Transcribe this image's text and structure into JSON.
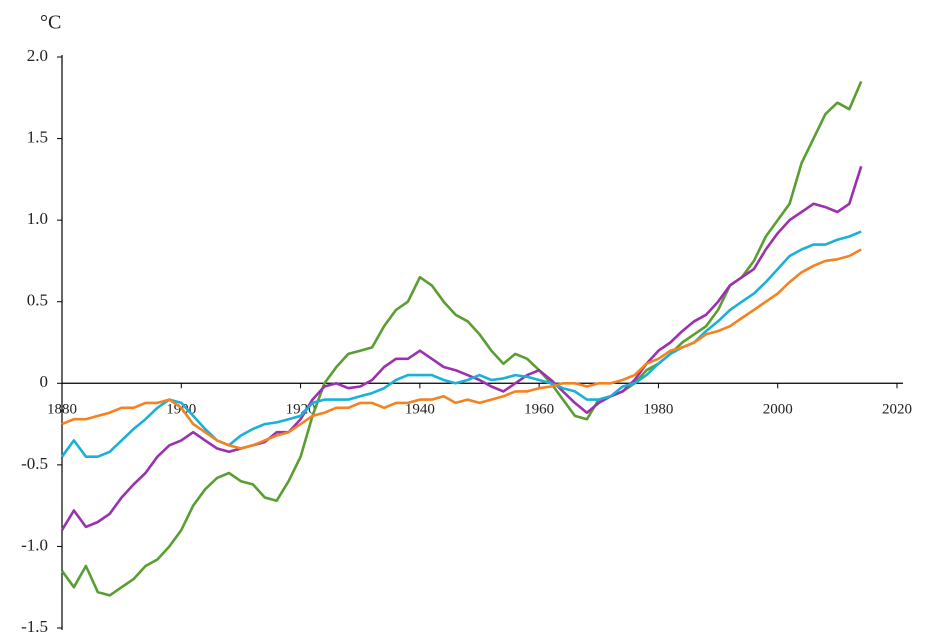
{
  "chart_data": {
    "type": "line",
    "ylabel": "°C",
    "x": [
      1880,
      1882,
      1884,
      1886,
      1888,
      1890,
      1892,
      1894,
      1896,
      1898,
      1900,
      1902,
      1904,
      1906,
      1908,
      1910,
      1912,
      1914,
      1916,
      1918,
      1920,
      1922,
      1924,
      1926,
      1928,
      1930,
      1932,
      1934,
      1936,
      1938,
      1940,
      1942,
      1944,
      1946,
      1948,
      1950,
      1952,
      1954,
      1956,
      1958,
      1960,
      1962,
      1964,
      1966,
      1968,
      1970,
      1972,
      1974,
      1976,
      1978,
      1980,
      1982,
      1984,
      1986,
      1988,
      1990,
      1992,
      1994,
      1996,
      1998,
      2000,
      2002,
      2004,
      2006,
      2008,
      2010,
      2012,
      2014
    ],
    "xlim": [
      1880,
      2020
    ],
    "xticks": [
      1880,
      1900,
      1920,
      1940,
      1960,
      1980,
      2000,
      2020
    ],
    "ylim": [
      -1.5,
      2.0
    ],
    "yticks": [
      {
        "value": 2.0,
        "label": "2.0"
      },
      1.5,
      {
        "value": 1.0,
        "label": "1.0"
      },
      0.5,
      0,
      -0.5,
      {
        "value": -1.0,
        "label": "-1.0"
      },
      -1.5
    ],
    "series": [
      {
        "color": "#5a9e32",
        "values": [
          -1.15,
          -1.25,
          -1.12,
          -1.28,
          -1.3,
          -1.25,
          -1.2,
          -1.12,
          -1.08,
          -1.0,
          -0.9,
          -0.75,
          -0.65,
          -0.58,
          -0.55,
          -0.6,
          -0.62,
          -0.7,
          -0.72,
          -0.6,
          -0.45,
          -0.2,
          0.0,
          0.1,
          0.18,
          0.2,
          0.22,
          0.35,
          0.45,
          0.5,
          0.65,
          0.6,
          0.5,
          0.42,
          0.38,
          0.3,
          0.2,
          0.12,
          0.18,
          0.15,
          0.08,
          0.0,
          -0.1,
          -0.2,
          -0.22,
          -0.1,
          -0.08,
          -0.05,
          0.0,
          0.08,
          0.12,
          0.18,
          0.25,
          0.3,
          0.35,
          0.45,
          0.6,
          0.65,
          0.75,
          0.9,
          1.0,
          1.1,
          1.35,
          1.5,
          1.65,
          1.72,
          1.68,
          1.85
        ]
      },
      {
        "color": "#9b30b0",
        "values": [
          -0.9,
          -0.78,
          -0.88,
          -0.85,
          -0.8,
          -0.7,
          -0.62,
          -0.55,
          -0.45,
          -0.38,
          -0.35,
          -0.3,
          -0.35,
          -0.4,
          -0.42,
          -0.4,
          -0.38,
          -0.36,
          -0.3,
          -0.3,
          -0.22,
          -0.1,
          -0.02,
          0.0,
          -0.03,
          -0.02,
          0.02,
          0.1,
          0.15,
          0.15,
          0.2,
          0.15,
          0.1,
          0.08,
          0.05,
          0.02,
          -0.02,
          -0.05,
          0.0,
          0.05,
          0.08,
          0.02,
          -0.05,
          -0.12,
          -0.18,
          -0.12,
          -0.08,
          -0.05,
          0.02,
          0.12,
          0.2,
          0.25,
          0.32,
          0.38,
          0.42,
          0.5,
          0.6,
          0.65,
          0.7,
          0.82,
          0.92,
          1.0,
          1.05,
          1.1,
          1.08,
          1.05,
          1.1,
          1.33
        ]
      },
      {
        "color": "#1ab0d8",
        "values": [
          -0.45,
          -0.35,
          -0.45,
          -0.45,
          -0.42,
          -0.35,
          -0.28,
          -0.22,
          -0.15,
          -0.1,
          -0.12,
          -0.2,
          -0.28,
          -0.35,
          -0.38,
          -0.32,
          -0.28,
          -0.25,
          -0.24,
          -0.22,
          -0.2,
          -0.12,
          -0.1,
          -0.1,
          -0.1,
          -0.08,
          -0.06,
          -0.03,
          0.02,
          0.05,
          0.05,
          0.05,
          0.02,
          0.0,
          0.02,
          0.05,
          0.02,
          0.03,
          0.05,
          0.04,
          0.02,
          0.0,
          -0.03,
          -0.05,
          -0.1,
          -0.1,
          -0.08,
          -0.02,
          0.0,
          0.05,
          0.12,
          0.18,
          0.22,
          0.25,
          0.32,
          0.38,
          0.45,
          0.5,
          0.55,
          0.62,
          0.7,
          0.78,
          0.82,
          0.85,
          0.85,
          0.88,
          0.9,
          0.93
        ]
      },
      {
        "color": "#f58220",
        "values": [
          -0.25,
          -0.22,
          -0.22,
          -0.2,
          -0.18,
          -0.15,
          -0.15,
          -0.12,
          -0.12,
          -0.1,
          -0.15,
          -0.25,
          -0.3,
          -0.35,
          -0.38,
          -0.4,
          -0.38,
          -0.35,
          -0.32,
          -0.3,
          -0.25,
          -0.2,
          -0.18,
          -0.15,
          -0.15,
          -0.12,
          -0.12,
          -0.15,
          -0.12,
          -0.12,
          -0.1,
          -0.1,
          -0.08,
          -0.12,
          -0.1,
          -0.12,
          -0.1,
          -0.08,
          -0.05,
          -0.05,
          -0.03,
          -0.02,
          0.0,
          0.0,
          -0.02,
          0.0,
          0.0,
          0.02,
          0.05,
          0.12,
          0.15,
          0.2,
          0.22,
          0.25,
          0.3,
          0.32,
          0.35,
          0.4,
          0.45,
          0.5,
          0.55,
          0.62,
          0.68,
          0.72,
          0.75,
          0.76,
          0.78,
          0.82
        ]
      }
    ]
  }
}
